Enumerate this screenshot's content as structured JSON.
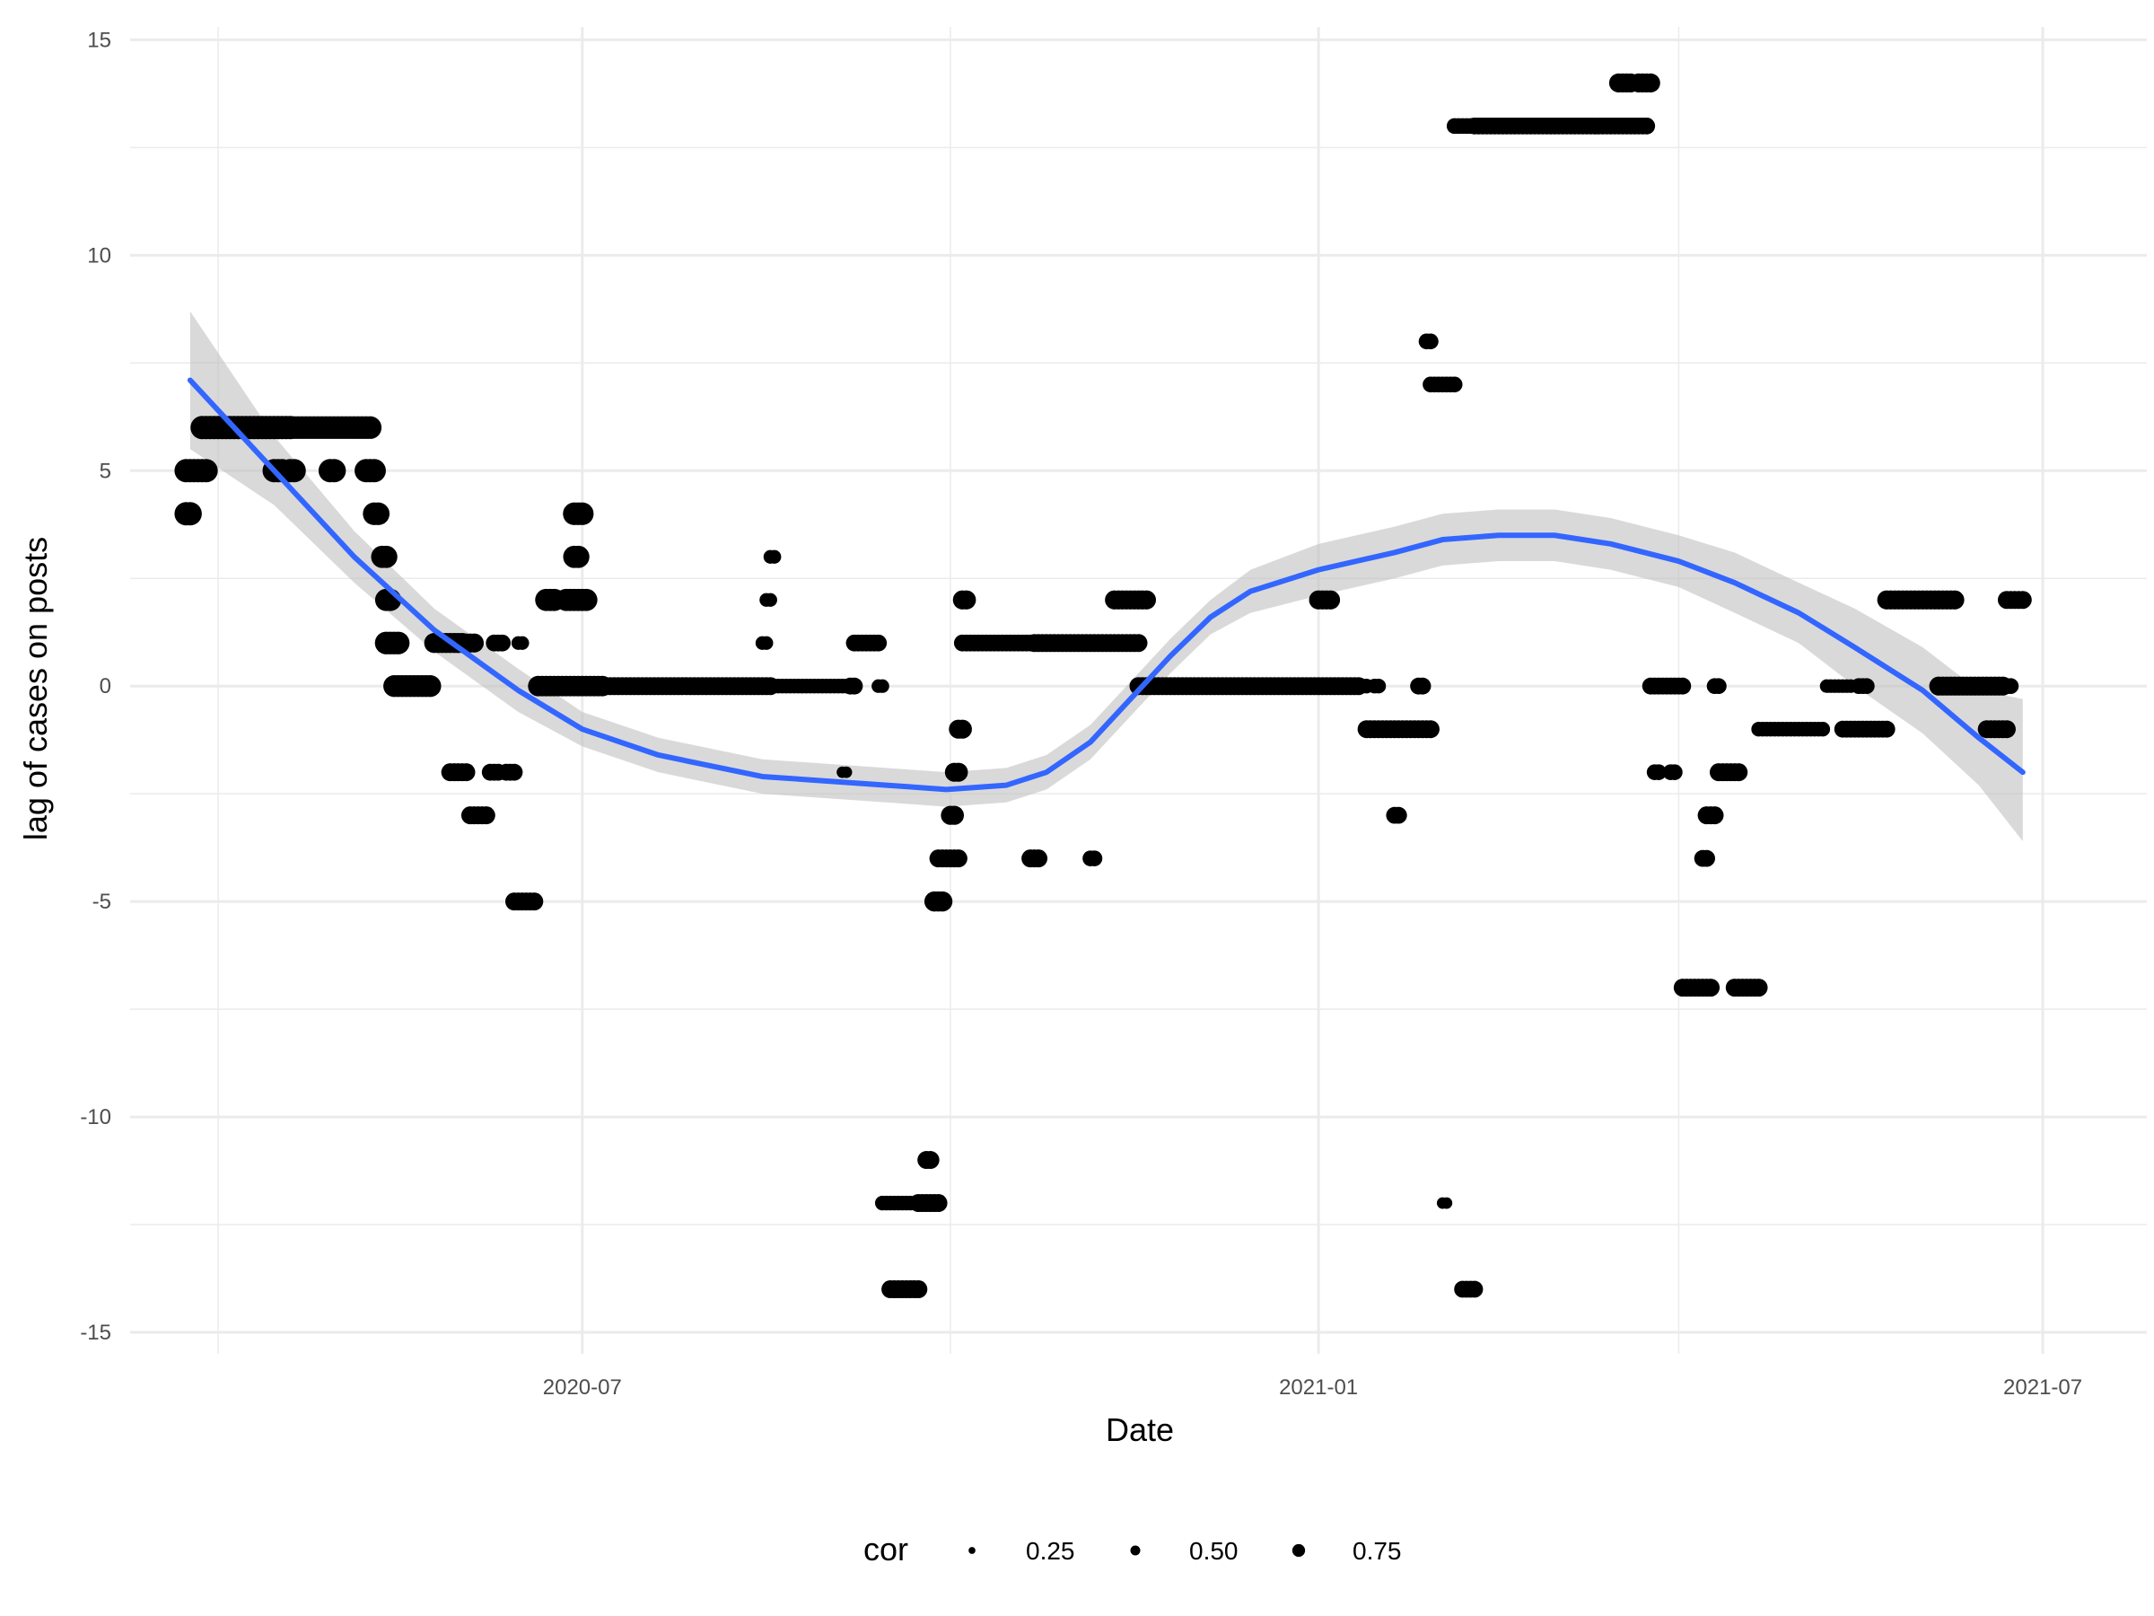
{
  "chart_data": {
    "type": "scatter",
    "title": "",
    "xlabel": "Date",
    "ylabel": "lag of cases on posts",
    "xlim": [
      "2020-03-10",
      "2021-07-27"
    ],
    "ylim": [
      -15.5,
      15.3
    ],
    "x_ticks_major": [
      "2020-07-01",
      "2021-01-01",
      "2021-07-01"
    ],
    "x_tick_labels": [
      "2020-07",
      "2021-01",
      "2021-07"
    ],
    "x_ticks_minor": [
      "2020-04-01",
      "2020-10-01",
      "2021-04-01"
    ],
    "y_ticks": [
      -15,
      -10,
      -5,
      0,
      5,
      10,
      15
    ],
    "y_tick_labels": [
      "-15",
      "-10",
      "-5",
      "0",
      "5",
      "10",
      "15"
    ],
    "grid": true,
    "legend": {
      "position": "bottom",
      "title": "cor",
      "entries": [
        {
          "label": "0.25",
          "value": 0.25
        },
        {
          "label": "0.50",
          "value": 0.5
        },
        {
          "label": "0.75",
          "value": 0.75
        }
      ]
    },
    "colors": {
      "points": "#000000",
      "smooth": "#3366ff",
      "band": "#bfbfbf",
      "grid": "#ebebeb"
    },
    "segments": [
      {
        "start": "2020-03-24",
        "end": "2020-03-25",
        "y": 4,
        "cor": 0.75
      },
      {
        "start": "2020-03-24",
        "end": "2020-03-29",
        "y": 5,
        "cor": 0.75
      },
      {
        "start": "2020-03-28",
        "end": "2020-04-19",
        "y": 6,
        "cor": 0.75
      },
      {
        "start": "2020-04-15",
        "end": "2020-04-17",
        "y": 5,
        "cor": 0.75
      },
      {
        "start": "2020-04-19",
        "end": "2020-04-20",
        "y": 5,
        "cor": 0.75
      },
      {
        "start": "2020-04-19",
        "end": "2020-05-09",
        "y": 6,
        "cor": 0.72
      },
      {
        "start": "2020-04-29",
        "end": "2020-04-30",
        "y": 5,
        "cor": 0.75
      },
      {
        "start": "2020-05-08",
        "end": "2020-05-10",
        "y": 5,
        "cor": 0.75
      },
      {
        "start": "2020-05-10",
        "end": "2020-05-11",
        "y": 4,
        "cor": 0.72
      },
      {
        "start": "2020-05-12",
        "end": "2020-05-13",
        "y": 3,
        "cor": 0.7
      },
      {
        "start": "2020-05-13",
        "end": "2020-05-14",
        "y": 2,
        "cor": 0.7
      },
      {
        "start": "2020-05-13",
        "end": "2020-05-16",
        "y": 1,
        "cor": 0.72
      },
      {
        "start": "2020-05-15",
        "end": "2020-05-24",
        "y": 0,
        "cor": 0.68
      },
      {
        "start": "2020-05-25",
        "end": "2020-06-01",
        "y": 1,
        "cor": 0.6
      },
      {
        "start": "2020-05-29",
        "end": "2020-06-02",
        "y": -2,
        "cor": 0.5
      },
      {
        "start": "2020-06-02",
        "end": "2020-06-04",
        "y": 1,
        "cor": 0.55
      },
      {
        "start": "2020-06-03",
        "end": "2020-06-07",
        "y": -3,
        "cor": 0.5
      },
      {
        "start": "2020-06-08",
        "end": "2020-06-10",
        "y": -2,
        "cor": 0.45
      },
      {
        "start": "2020-06-09",
        "end": "2020-06-11",
        "y": 1,
        "cor": 0.45
      },
      {
        "start": "2020-06-12",
        "end": "2020-06-14",
        "y": -2,
        "cor": 0.45
      },
      {
        "start": "2020-06-15",
        "end": "2020-06-16",
        "y": 1,
        "cor": 0.3
      },
      {
        "start": "2020-06-14",
        "end": "2020-06-19",
        "y": -5,
        "cor": 0.5
      },
      {
        "start": "2020-06-20",
        "end": "2020-07-06",
        "y": 0,
        "cor": 0.62
      },
      {
        "start": "2020-06-22",
        "end": "2020-06-24",
        "y": 2,
        "cor": 0.7
      },
      {
        "start": "2020-06-27",
        "end": "2020-07-02",
        "y": 2,
        "cor": 0.7
      },
      {
        "start": "2020-06-29",
        "end": "2020-06-30",
        "y": 3,
        "cor": 0.7
      },
      {
        "start": "2020-06-29",
        "end": "2020-07-01",
        "y": 4,
        "cor": 0.72
      },
      {
        "start": "2020-07-06",
        "end": "2020-08-17",
        "y": 0,
        "cor": 0.5
      },
      {
        "start": "2020-08-15",
        "end": "2020-08-16",
        "y": 1,
        "cor": 0.3
      },
      {
        "start": "2020-08-16",
        "end": "2020-08-17",
        "y": 2,
        "cor": 0.3
      },
      {
        "start": "2020-08-17",
        "end": "2020-08-18",
        "y": 3,
        "cor": 0.3
      },
      {
        "start": "2020-08-18",
        "end": "2020-09-06",
        "y": 0,
        "cor": 0.35
      },
      {
        "start": "2020-09-04",
        "end": "2020-09-05",
        "y": -2,
        "cor": 0.2
      },
      {
        "start": "2020-09-06",
        "end": "2020-09-07",
        "y": 0,
        "cor": 0.45
      },
      {
        "start": "2020-09-07",
        "end": "2020-09-13",
        "y": 1,
        "cor": 0.45
      },
      {
        "start": "2020-09-13",
        "end": "2020-09-14",
        "y": 0,
        "cor": 0.3
      },
      {
        "start": "2020-09-14",
        "end": "2020-09-19",
        "y": -12,
        "cor": 0.35
      },
      {
        "start": "2020-09-16",
        "end": "2020-09-23",
        "y": -14,
        "cor": 0.5
      },
      {
        "start": "2020-09-20",
        "end": "2020-09-21",
        "y": -12,
        "cor": 0.35
      },
      {
        "start": "2020-09-23",
        "end": "2020-09-28",
        "y": -12,
        "cor": 0.5
      },
      {
        "start": "2020-09-25",
        "end": "2020-09-26",
        "y": -11,
        "cor": 0.5
      },
      {
        "start": "2020-09-27",
        "end": "2020-09-29",
        "y": -5,
        "cor": 0.6
      },
      {
        "start": "2020-09-28",
        "end": "2020-10-03",
        "y": -4,
        "cor": 0.5
      },
      {
        "start": "2020-10-01",
        "end": "2020-10-02",
        "y": -3,
        "cor": 0.55
      },
      {
        "start": "2020-10-02",
        "end": "2020-10-03",
        "y": -2,
        "cor": 0.55
      },
      {
        "start": "2020-10-03",
        "end": "2020-10-04",
        "y": -1,
        "cor": 0.55
      },
      {
        "start": "2020-10-04",
        "end": "2020-10-05",
        "y": 2,
        "cor": 0.55
      },
      {
        "start": "2020-10-04",
        "end": "2020-10-22",
        "y": 1,
        "cor": 0.45
      },
      {
        "start": "2020-10-21",
        "end": "2020-10-23",
        "y": -4,
        "cor": 0.5
      },
      {
        "start": "2020-10-22",
        "end": "2020-11-17",
        "y": 1,
        "cor": 0.5
      },
      {
        "start": "2020-11-05",
        "end": "2020-11-06",
        "y": -4,
        "cor": 0.4
      },
      {
        "start": "2020-11-11",
        "end": "2020-11-19",
        "y": 2,
        "cor": 0.55
      },
      {
        "start": "2020-11-17",
        "end": "2021-01-11",
        "y": 0,
        "cor": 0.5
      },
      {
        "start": "2021-01-01",
        "end": "2021-01-04",
        "y": 2,
        "cor": 0.55
      },
      {
        "start": "2021-01-12",
        "end": "2021-01-13",
        "y": 0,
        "cor": 0.35
      },
      {
        "start": "2021-01-13",
        "end": "2021-01-29",
        "y": -1,
        "cor": 0.5
      },
      {
        "start": "2021-01-15",
        "end": "2021-01-16",
        "y": 0,
        "cor": 0.35
      },
      {
        "start": "2021-01-20",
        "end": "2021-01-21",
        "y": -3,
        "cor": 0.45
      },
      {
        "start": "2021-01-26",
        "end": "2021-01-27",
        "y": 0,
        "cor": 0.45
      },
      {
        "start": "2021-01-28",
        "end": "2021-01-29",
        "y": 8,
        "cor": 0.4
      },
      {
        "start": "2021-01-29",
        "end": "2021-02-04",
        "y": 7,
        "cor": 0.4
      },
      {
        "start": "2021-02-01",
        "end": "2021-02-02",
        "y": -12,
        "cor": 0.2
      },
      {
        "start": "2021-02-04",
        "end": "2021-02-08",
        "y": 13,
        "cor": 0.4
      },
      {
        "start": "2021-02-06",
        "end": "2021-02-09",
        "y": -14,
        "cor": 0.45
      },
      {
        "start": "2021-02-09",
        "end": "2021-03-24",
        "y": 13,
        "cor": 0.45
      },
      {
        "start": "2021-03-17",
        "end": "2021-03-20",
        "y": 14,
        "cor": 0.55
      },
      {
        "start": "2021-03-22",
        "end": "2021-03-25",
        "y": 14,
        "cor": 0.55
      },
      {
        "start": "2021-03-25",
        "end": "2021-04-02",
        "y": 0,
        "cor": 0.45
      },
      {
        "start": "2021-03-26",
        "end": "2021-03-27",
        "y": -2,
        "cor": 0.4
      },
      {
        "start": "2021-03-30",
        "end": "2021-03-31",
        "y": -2,
        "cor": 0.4
      },
      {
        "start": "2021-04-02",
        "end": "2021-04-09",
        "y": -7,
        "cor": 0.5
      },
      {
        "start": "2021-04-07",
        "end": "2021-04-08",
        "y": -4,
        "cor": 0.45
      },
      {
        "start": "2021-04-08",
        "end": "2021-04-10",
        "y": -3,
        "cor": 0.5
      },
      {
        "start": "2021-04-10",
        "end": "2021-04-11",
        "y": 0,
        "cor": 0.4
      },
      {
        "start": "2021-04-11",
        "end": "2021-04-16",
        "y": -2,
        "cor": 0.5
      },
      {
        "start": "2021-04-15",
        "end": "2021-04-21",
        "y": -7,
        "cor": 0.5
      },
      {
        "start": "2021-04-21",
        "end": "2021-05-07",
        "y": -1,
        "cor": 0.35
      },
      {
        "start": "2021-05-08",
        "end": "2021-05-14",
        "y": 0,
        "cor": 0.3
      },
      {
        "start": "2021-05-16",
        "end": "2021-05-18",
        "y": 0,
        "cor": 0.4
      },
      {
        "start": "2021-05-12",
        "end": "2021-05-23",
        "y": -1,
        "cor": 0.45
      },
      {
        "start": "2021-05-23",
        "end": "2021-06-09",
        "y": 2,
        "cor": 0.55
      },
      {
        "start": "2021-06-05",
        "end": "2021-06-21",
        "y": 0,
        "cor": 0.55
      },
      {
        "start": "2021-06-17",
        "end": "2021-06-22",
        "y": -1,
        "cor": 0.5
      },
      {
        "start": "2021-06-21",
        "end": "2021-06-23",
        "y": 0,
        "cor": 0.4
      },
      {
        "start": "2021-06-22",
        "end": "2021-06-26",
        "y": 2,
        "cor": 0.5
      }
    ],
    "smooth": {
      "name": "",
      "x": [
        "2020-03-25",
        "2020-04-15",
        "2020-05-05",
        "2020-05-25",
        "2020-06-15",
        "2020-07-01",
        "2020-07-20",
        "2020-08-15",
        "2020-09-15",
        "2020-09-30",
        "2020-10-15",
        "2020-10-25",
        "2020-11-05",
        "2020-11-15",
        "2020-11-25",
        "2020-12-05",
        "2020-12-15",
        "2021-01-01",
        "2021-01-20",
        "2021-02-01",
        "2021-02-15",
        "2021-03-01",
        "2021-03-15",
        "2021-04-01",
        "2021-04-15",
        "2021-05-01",
        "2021-05-15",
        "2021-06-01",
        "2021-06-15",
        "2021-06-26"
      ],
      "y": [
        7.1,
        5.0,
        3.0,
        1.3,
        -0.1,
        -1.0,
        -1.6,
        -2.1,
        -2.3,
        -2.4,
        -2.3,
        -2.0,
        -1.3,
        -0.3,
        0.7,
        1.6,
        2.2,
        2.7,
        3.1,
        3.4,
        3.5,
        3.5,
        3.3,
        2.9,
        2.4,
        1.7,
        0.9,
        -0.1,
        -1.2,
        -2.0
      ],
      "upper": [
        8.7,
        5.8,
        3.6,
        1.8,
        0.4,
        -0.6,
        -1.2,
        -1.7,
        -1.9,
        -2.0,
        -1.9,
        -1.6,
        -0.9,
        0.1,
        1.1,
        2.0,
        2.7,
        3.3,
        3.7,
        4.0,
        4.1,
        4.1,
        3.9,
        3.5,
        3.1,
        2.4,
        1.8,
        0.9,
        -0.1,
        -0.3
      ],
      "lower": [
        5.5,
        4.2,
        2.4,
        0.8,
        -0.6,
        -1.4,
        -2.0,
        -2.5,
        -2.7,
        -2.8,
        -2.7,
        -2.4,
        -1.7,
        -0.7,
        0.3,
        1.2,
        1.7,
        2.1,
        2.5,
        2.8,
        2.9,
        2.9,
        2.7,
        2.3,
        1.7,
        1.0,
        0.0,
        -1.1,
        -2.3,
        -3.6
      ]
    }
  }
}
